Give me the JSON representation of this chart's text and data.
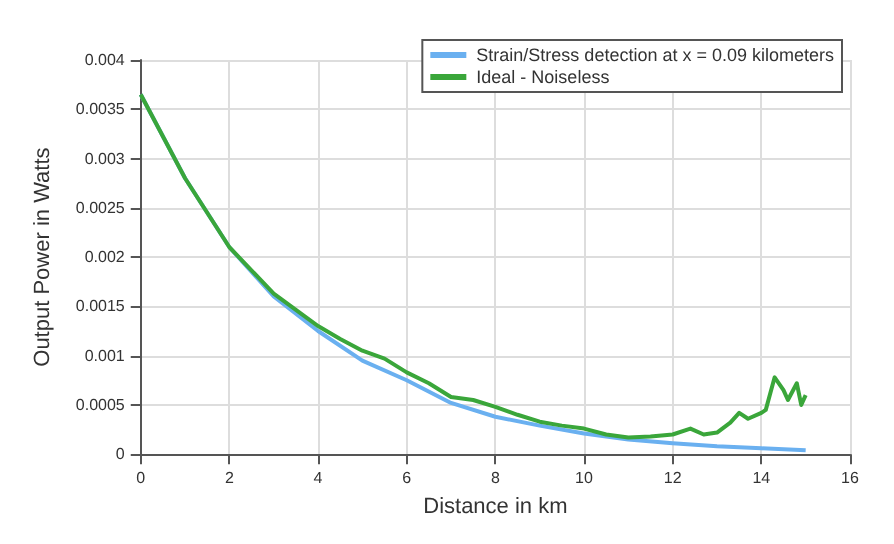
{
  "chart_data": {
    "type": "line",
    "xlabel": "Distance in km",
    "ylabel": "Output Power in Watts",
    "xlim": [
      0,
      16
    ],
    "xticks": [
      0,
      2,
      4,
      6,
      8,
      10,
      12,
      14,
      16
    ],
    "ylim": [
      0,
      0.004
    ],
    "yticks": [
      0,
      0.0005,
      0.001,
      0.0015,
      0.002,
      0.0025,
      0.003,
      0.0035,
      0.004
    ],
    "grid": true,
    "legend": "top right",
    "marker": "none",
    "line_style": "solid",
    "series": [
      {
        "name": "Strain/Stress detection at x = 0.09 kilometers",
        "color": "#6ab0f0",
        "x": [
          0,
          1,
          2,
          3,
          4,
          5,
          6,
          7,
          8,
          9,
          10,
          11,
          12,
          13,
          14,
          15
        ],
        "values": [
          0.00365,
          0.0028,
          0.0021,
          0.0016,
          0.00125,
          0.00095,
          0.00075,
          0.00052,
          0.00038,
          0.00029,
          0.00021,
          0.00015,
          0.00011,
          8e-05,
          6e-05,
          4e-05
        ]
      },
      {
        "name": "Ideal - Noiseless",
        "color": "#3aa63a",
        "x": [
          0,
          1,
          2,
          3,
          4,
          4.5,
          5,
          5.5,
          6,
          6.5,
          7,
          7.5,
          8,
          8.5,
          9,
          9.5,
          10,
          10.5,
          11,
          11.5,
          12,
          12.4,
          12.7,
          13,
          13.3,
          13.5,
          13.7,
          14,
          14.1,
          14.3,
          14.5,
          14.6,
          14.8,
          14.9,
          15
        ],
        "values": [
          0.00365,
          0.0028,
          0.0021,
          0.00163,
          0.0013,
          0.00117,
          0.00105,
          0.00097,
          0.00083,
          0.00072,
          0.00058,
          0.00055,
          0.00048,
          0.0004,
          0.00033,
          0.00029,
          0.00026,
          0.0002,
          0.00017,
          0.00018,
          0.0002,
          0.00026,
          0.0002,
          0.00022,
          0.00032,
          0.00042,
          0.00036,
          0.00042,
          0.00045,
          0.00078,
          0.00065,
          0.00055,
          0.00072,
          0.0005,
          0.0006
        ]
      }
    ]
  }
}
